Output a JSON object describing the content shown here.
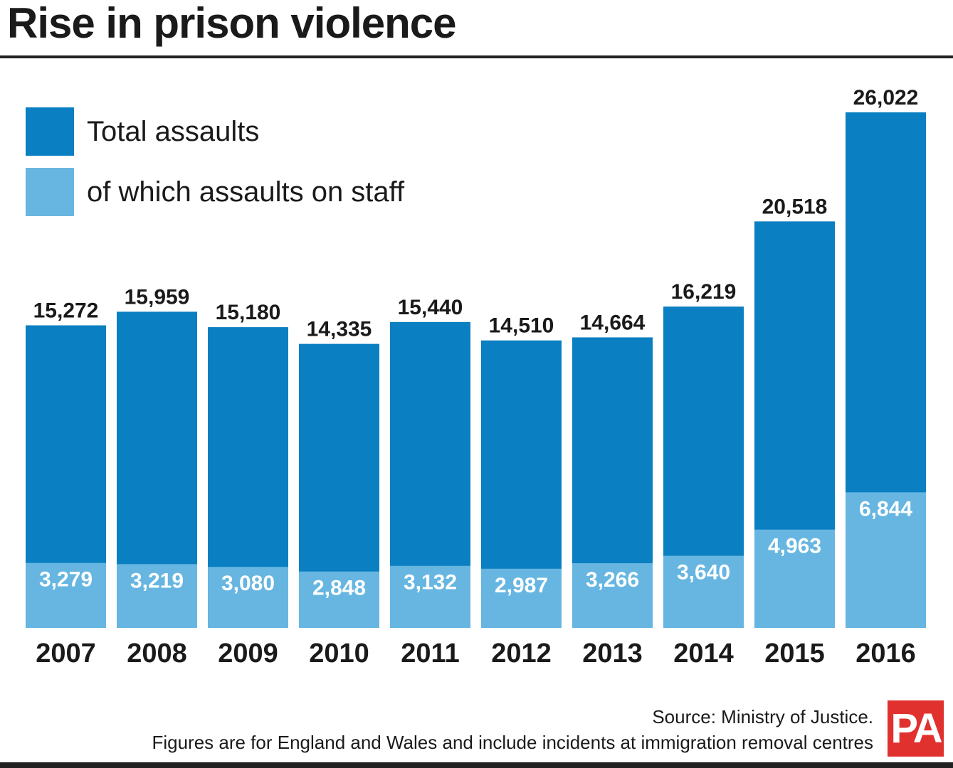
{
  "chart_data": {
    "type": "bar",
    "stacking": "overlay",
    "title": "Rise in prison violence",
    "categories": [
      "2007",
      "2008",
      "2009",
      "2010",
      "2011",
      "2012",
      "2013",
      "2014",
      "2015",
      "2016"
    ],
    "series": [
      {
        "name": "Total assaults",
        "color": "#0a7fc1",
        "values": [
          15272,
          15959,
          15180,
          14335,
          15440,
          14510,
          14664,
          16219,
          20518,
          26022
        ]
      },
      {
        "name": "of which assaults on staff",
        "color": "#66b6e1",
        "values": [
          3279,
          3219,
          3080,
          2848,
          3132,
          2987,
          3266,
          3640,
          4963,
          6844
        ]
      }
    ],
    "legend_placement": "top-left",
    "grid": false,
    "ylim": [
      0,
      26022
    ]
  },
  "footer": {
    "source": "Source: Ministry of Justice.",
    "note": "Figures are for England and Wales and include incidents at immigration removal centres",
    "logo": "PA",
    "logo_color": "#e0312f"
  }
}
